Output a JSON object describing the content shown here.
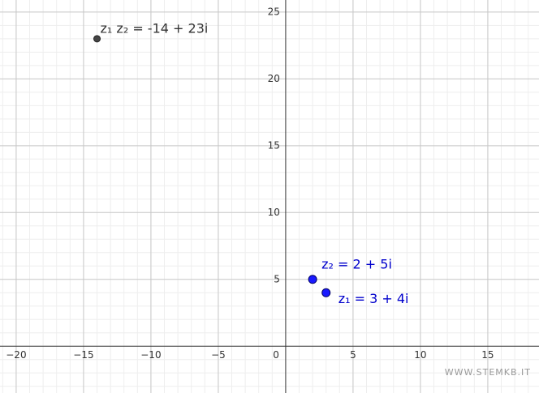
{
  "chart_data": {
    "type": "scatter",
    "points": [
      {
        "label": "z₁ z₂ = -14 + 23i",
        "x": -14,
        "y": 23,
        "color": "#444444"
      },
      {
        "label": "z₂ = 2 + 5i",
        "x": 2,
        "y": 5,
        "color": "#1a1aff"
      },
      {
        "label": "z₁ = 3 + 4i",
        "x": 3,
        "y": 4,
        "color": "#1a1aff"
      }
    ],
    "xlim": [
      -21.2,
      18.8
    ],
    "ylim": [
      -3.5,
      25.9
    ],
    "xticks": [
      {
        "value": -20,
        "label": "−20"
      },
      {
        "value": -15,
        "label": "−15"
      },
      {
        "value": -10,
        "label": "−10"
      },
      {
        "value": -5,
        "label": "−5"
      },
      0,
      5,
      10,
      15
    ],
    "yticks": [
      5,
      10,
      15,
      20,
      25
    ],
    "grid": true,
    "minor_grid": true,
    "watermark": "WWW.STEMKB.IT"
  }
}
